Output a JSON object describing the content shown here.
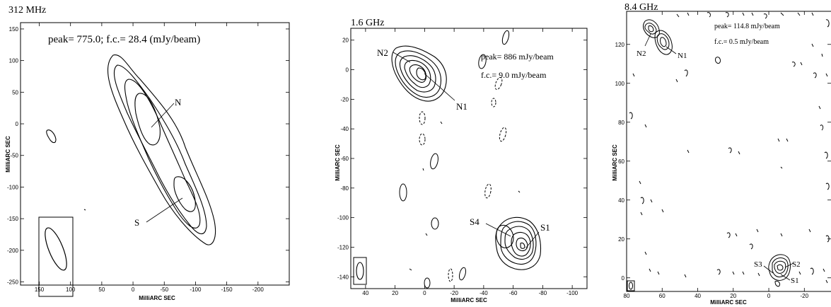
{
  "chart_data": [
    {
      "type": "contour",
      "title": "312 MHz",
      "annotation": "peak= 775.0; f.c.= 28.4 (mJy/beam)",
      "xlabel": "MilliARC SEC",
      "ylabel": "MilliARC SEC",
      "xlim": [
        180,
        -250
      ],
      "ylim": [
        -255,
        160
      ],
      "x_ticks": [
        150,
        100,
        50,
        0,
        -50,
        -100,
        -150,
        -200
      ],
      "y_ticks": [
        150,
        100,
        50,
        0,
        -50,
        -100,
        -150,
        -200,
        -250
      ],
      "x_tick_labels": [
        "150",
        "100",
        "50",
        "0",
        "-50",
        "-100",
        "-150",
        "-200"
      ],
      "y_tick_labels": [
        "150",
        "100",
        "50",
        "0",
        "-50",
        "-100",
        "-150",
        "-200",
        "-250"
      ],
      "components": [
        {
          "name": "N",
          "x": 0,
          "y": 0
        },
        {
          "name": "S",
          "x": -60,
          "y": -120
        }
      ]
    },
    {
      "type": "contour",
      "title": "1.6 GHz",
      "annotation": "peak= 886 mJy/beam",
      "annotation2": "f.c.= 9.0 mJy/beam",
      "xlabel": "MilliARC SEC",
      "ylabel": "MilliARC SEC",
      "xlim": [
        50,
        -110
      ],
      "ylim": [
        -148,
        28
      ],
      "x_ticks": [
        40,
        20,
        0,
        -20,
        -40,
        -60,
        -80,
        -100
      ],
      "y_ticks": [
        20,
        0,
        -20,
        -40,
        -60,
        -80,
        -100,
        -120,
        -140
      ],
      "x_tick_labels": [
        "40",
        "20",
        "0",
        "-20",
        "-40",
        "-60",
        "-80",
        "-100"
      ],
      "y_tick_labels": [
        "20",
        "0",
        "-20",
        "-40",
        "-60",
        "-80",
        "-100",
        "-120",
        "-140"
      ],
      "components": [
        {
          "name": "N2",
          "x": 10,
          "y": 10
        },
        {
          "name": "N1",
          "x": 0,
          "y": 0
        },
        {
          "name": "S4",
          "x": -55,
          "y": -115
        },
        {
          "name": "S1",
          "x": -63,
          "y": -120
        }
      ]
    },
    {
      "type": "contour",
      "title": "8.4 GHz",
      "annotation": "peak= 114.8 mJy/beam",
      "annotation2": "f.c.= 0.5 mJy/beam",
      "xlabel": "MilliARC SEC",
      "ylabel": "MilliARC SEC",
      "xlim": [
        80,
        -35
      ],
      "ylim": [
        -7,
        137
      ],
      "x_ticks": [
        80,
        60,
        40,
        20,
        0,
        -20
      ],
      "y_ticks": [
        120,
        100,
        80,
        60,
        40,
        20,
        0
      ],
      "x_tick_labels": [
        "80",
        "60",
        "40",
        "20",
        "0",
        "-20"
      ],
      "y_tick_labels": [
        "120",
        "100",
        "80",
        "60",
        "40",
        "20",
        "0"
      ],
      "components": [
        {
          "name": "N2",
          "x": 70,
          "y": 127
        },
        {
          "name": "N1",
          "x": 60,
          "y": 122
        },
        {
          "name": "S3",
          "x": 3,
          "y": 5
        },
        {
          "name": "S2",
          "x": -2,
          "y": 6
        },
        {
          "name": "S1",
          "x": 0,
          "y": 0
        }
      ]
    }
  ]
}
